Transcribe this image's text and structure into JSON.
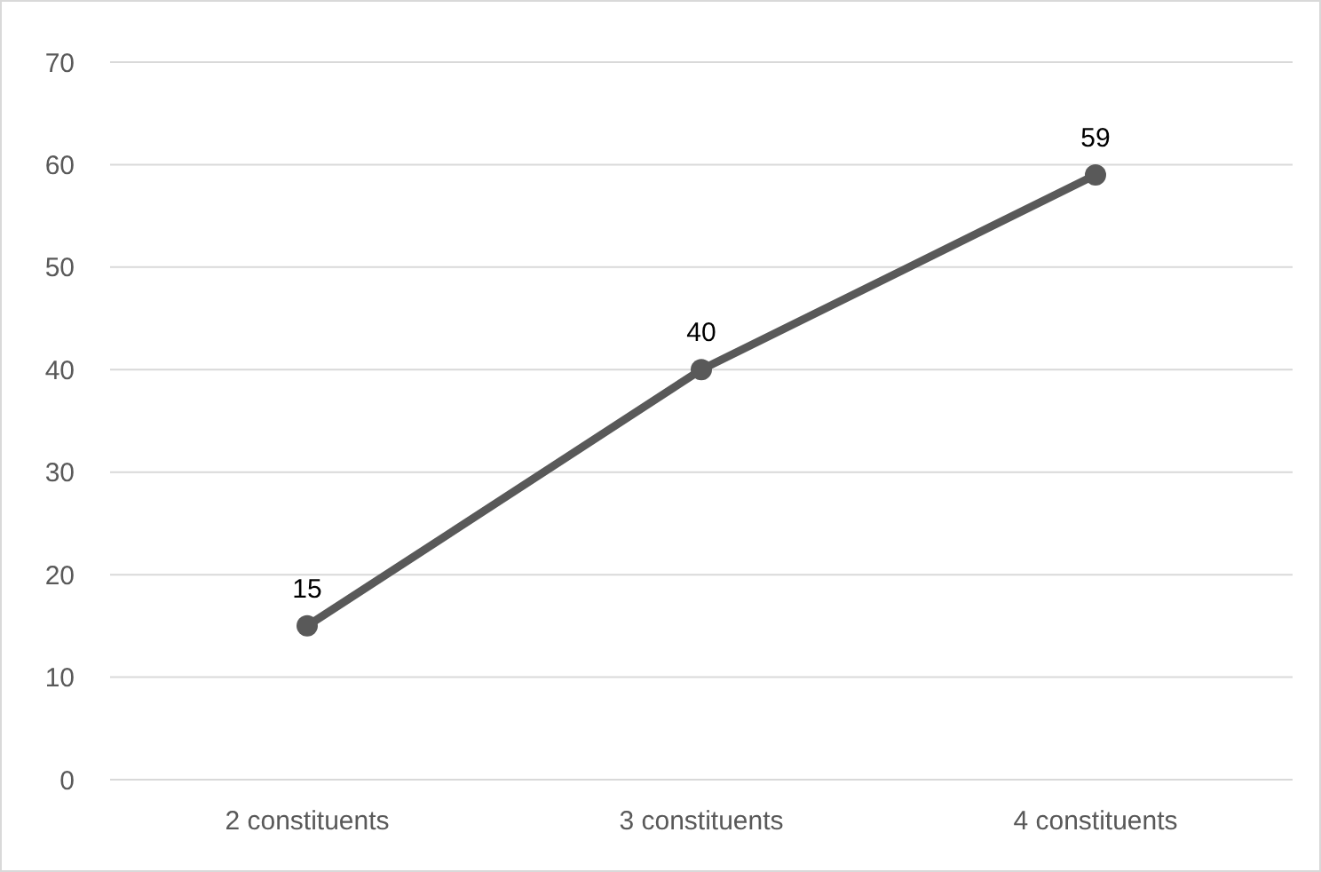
{
  "chart_data": {
    "type": "line",
    "categories": [
      "2 constituents",
      "3 constituents",
      "4 constituents"
    ],
    "series": [
      {
        "color": "#595959",
        "values": [
          15,
          40,
          59
        ]
      }
    ],
    "ylim": [
      0,
      70
    ],
    "yticks": [
      0,
      10,
      20,
      30,
      40,
      50,
      60,
      70
    ],
    "grid": "y",
    "marker": "circle",
    "line_style": "solid",
    "data_labels": true
  }
}
